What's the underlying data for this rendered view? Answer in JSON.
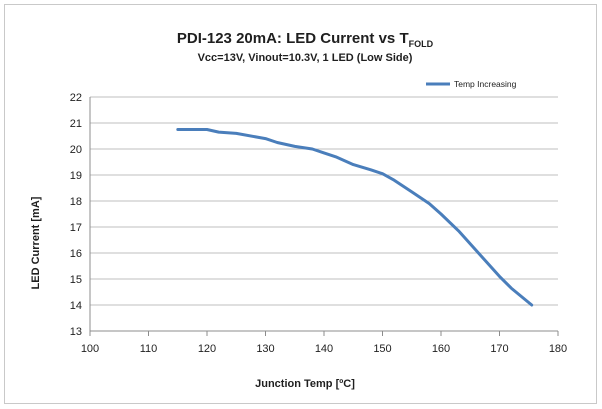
{
  "chart_data": {
    "type": "line",
    "title": "PDI-123 20mA: LED Current vs T",
    "title_subscript": "FOLD",
    "subtitle": "Vcc=13V, Vinout=10.3V, 1 LED (Low Side)",
    "xlabel": "Junction Temp [ºC]",
    "ylabel": "LED Current [mA]",
    "xlim": [
      100,
      180
    ],
    "ylim": [
      13,
      22
    ],
    "xticks": [
      "100",
      "110",
      "120",
      "130",
      "140",
      "150",
      "160",
      "170",
      "180"
    ],
    "yticks": [
      "13",
      "14",
      "15",
      "16",
      "17",
      "18",
      "19",
      "20",
      "21",
      "22"
    ],
    "grid": "horizontal",
    "legend_position": "top-right",
    "series": [
      {
        "name": "Temp Increasing",
        "color": "#4a7ebb",
        "x": [
          115,
          120,
          122,
          125,
          130,
          132,
          135,
          138,
          140,
          142,
          145,
          148,
          150,
          152,
          155,
          158,
          160,
          163,
          166,
          170,
          172,
          175.5
        ],
        "y": [
          20.75,
          20.75,
          20.65,
          20.6,
          20.4,
          20.25,
          20.1,
          20.0,
          19.85,
          19.7,
          19.4,
          19.2,
          19.05,
          18.8,
          18.35,
          17.9,
          17.5,
          16.85,
          16.1,
          15.1,
          14.65,
          14.0
        ]
      }
    ]
  }
}
